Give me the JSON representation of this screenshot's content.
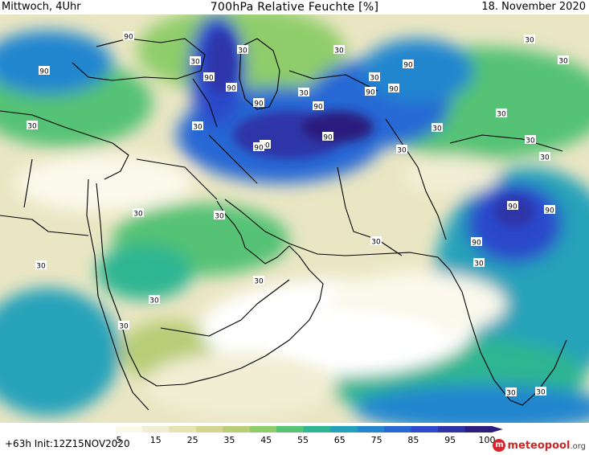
{
  "header": {
    "left": "Mittwoch, 4Uhr",
    "center": "700hPa Relative Feuchte [%]",
    "right": "18. November 2020"
  },
  "footer": {
    "left": "+63h  Init:12Z15NOV2020"
  },
  "logo": {
    "brand": "meteopool",
    "tld": ".org",
    "brand_color": "#c62828"
  },
  "legend": {
    "tick_labels": [
      "5",
      "15",
      "25",
      "35",
      "45",
      "55",
      "65",
      "75",
      "85",
      "95",
      "100"
    ],
    "colors": [
      "#ffffff",
      "#fbf9ec",
      "#f1eed4",
      "#e6e2b2",
      "#d4d591",
      "#b8cd76",
      "#8fcd6a",
      "#55c274",
      "#2fb592",
      "#25a2b9",
      "#2486cf",
      "#2867d4",
      "#2c4acb",
      "#2e34a8",
      "#2a1e7e"
    ]
  },
  "contour_labels": [
    {
      "text": "90"
    },
    {
      "text": "90"
    },
    {
      "text": "90"
    },
    {
      "text": "90"
    },
    {
      "text": "90"
    },
    {
      "text": "90"
    },
    {
      "text": "90"
    },
    {
      "text": "90"
    },
    {
      "text": "90"
    },
    {
      "text": "90"
    },
    {
      "text": "90"
    },
    {
      "text": "90"
    },
    {
      "text": "90"
    },
    {
      "text": "90"
    },
    {
      "text": "90"
    },
    {
      "text": "30"
    },
    {
      "text": "30"
    },
    {
      "text": "30"
    },
    {
      "text": "30"
    },
    {
      "text": "30"
    },
    {
      "text": "30"
    },
    {
      "text": "30"
    },
    {
      "text": "30"
    },
    {
      "text": "30"
    },
    {
      "text": "30"
    },
    {
      "text": "30"
    },
    {
      "text": "30"
    },
    {
      "text": "30"
    },
    {
      "text": "30"
    },
    {
      "text": "30"
    },
    {
      "text": "30"
    },
    {
      "text": "30"
    },
    {
      "text": "30"
    },
    {
      "text": "30"
    },
    {
      "text": "30"
    },
    {
      "text": "30"
    },
    {
      "text": "30"
    },
    {
      "text": "30"
    },
    {
      "text": "30"
    }
  ]
}
